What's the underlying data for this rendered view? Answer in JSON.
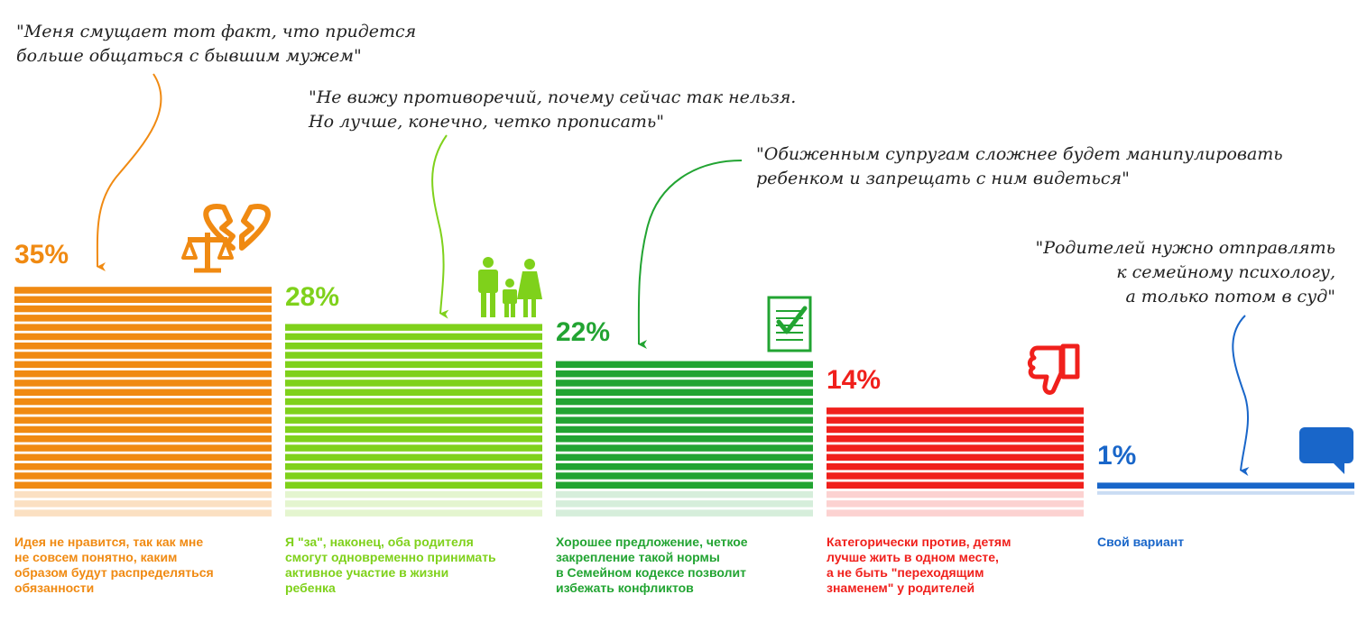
{
  "chart_data": {
    "type": "bar",
    "categories": [
      "Идея не нравится, так как мне\nне совсем понятно, каким\nобразом будут распределяться\nобязанности",
      "Я \"за\", наконец, оба родителя\nсмогут одновременно принимать\nактивное участие в жизни\nребенка",
      "Хорошее предложение, четкое\nзакрепление такой нормы\nв Семейном кодексе позволит\nизбежать конфликтов",
      "Категорически против, детям\nлучше жить в одном месте,\nа не быть \"переходящим\nзнаменем\" у родителей",
      "Свой вариант"
    ],
    "values": [
      35,
      28,
      22,
      14,
      1
    ],
    "value_labels": [
      "35%",
      "28%",
      "22%",
      "14%",
      "1%"
    ],
    "colors": [
      "#f08a12",
      "#7fd11b",
      "#22a432",
      "#f0201c",
      "#1966c9"
    ],
    "light_colors": [
      "#fbe0c2",
      "#e4f5cf",
      "#d6eedb",
      "#fcd2d1",
      "#c9dcf3"
    ],
    "icons": [
      "broken-heart-scales-icon",
      "family-icon",
      "checked-document-icon",
      "thumbs-down-icon",
      "chat-bubble-icon"
    ],
    "quotes": [
      "\"Меня смущает тот факт, что придется\nбольше общаться с бывшим мужем\"",
      "\"Не вижу противоречий, почему сейчас так нельзя.\nНо лучше, конечно, четко прописать\"",
      "\"Обиженным супругам сложнее будет манипулировать\nребенком и запрещать с ним видеться\"",
      "\"Родителей нужно отправлять\nк семейному психологу,\nа только потом в суд\""
    ],
    "title": "",
    "xlabel": "",
    "ylabel": "",
    "ylim": [
      0,
      35
    ],
    "grid": false,
    "legend": "none"
  }
}
